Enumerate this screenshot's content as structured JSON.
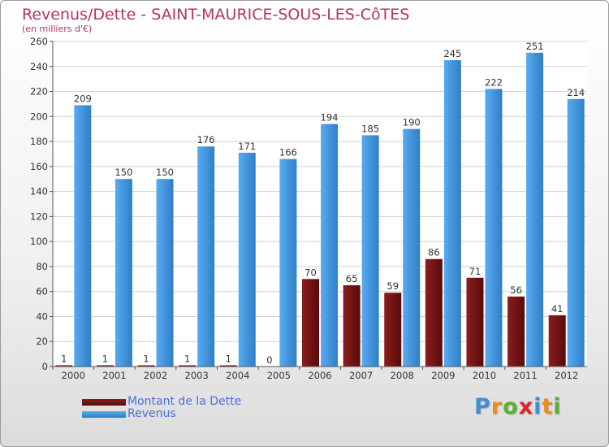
{
  "header": {
    "title": "Revenus/Dette - SAINT-MAURICE-SOUS-LES-CôTES",
    "subtitle": "(en milliers d'€)"
  },
  "logo": {
    "text": "Proxiti"
  },
  "colors": {
    "dette": "#6b0f0f",
    "revenus": "#3d8fd6",
    "title": "#b4336a",
    "legend_text": "#4b6fe0"
  },
  "chart_data": {
    "type": "bar",
    "title": "Revenus/Dette - SAINT-MAURICE-SOUS-LES-CôTES",
    "subtitle": "(en milliers d'€)",
    "categories": [
      "2000",
      "2001",
      "2002",
      "2003",
      "2004",
      "2005",
      "2006",
      "2007",
      "2008",
      "2009",
      "2010",
      "2011",
      "2012"
    ],
    "series": [
      {
        "name": "Montant de la Dette",
        "values": [
          1,
          1,
          1,
          1,
          1,
          0,
          70,
          65,
          59,
          86,
          71,
          56,
          41
        ]
      },
      {
        "name": "Revenus",
        "values": [
          209,
          150,
          150,
          176,
          171,
          166,
          194,
          185,
          190,
          245,
          222,
          251,
          214
        ]
      }
    ],
    "ylim": [
      0,
      260
    ],
    "yticks": [
      0,
      20,
      40,
      60,
      80,
      100,
      120,
      140,
      160,
      180,
      200,
      220,
      240,
      260
    ],
    "grid": true,
    "legend": "bottom-left",
    "data_labels": true
  }
}
